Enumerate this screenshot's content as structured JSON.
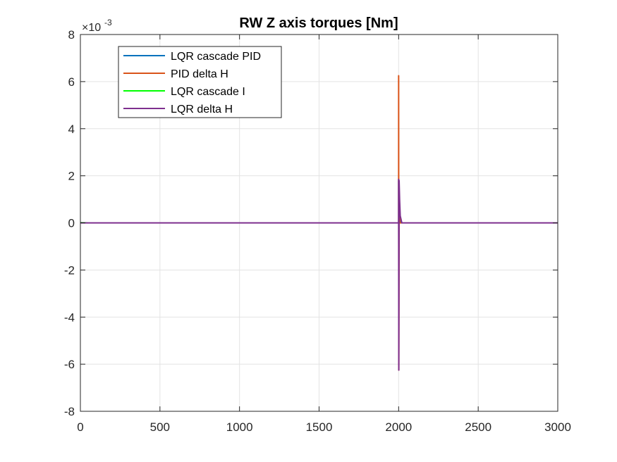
{
  "chart_data": {
    "type": "line",
    "title": "RW Z axis torques [Nm]",
    "xlabel": "",
    "ylabel": "",
    "xlim": [
      0,
      3000
    ],
    "ylim": [
      -8,
      8
    ],
    "y_exponent_base": "×10",
    "y_exponent_power": "-3",
    "grid": true,
    "legend_position": "top-left",
    "x_ticks": [
      0,
      500,
      1000,
      1500,
      2000,
      2500,
      3000
    ],
    "x_tick_labels": [
      "0",
      "500",
      "1000",
      "1500",
      "2000",
      "2500",
      "3000"
    ],
    "y_ticks": [
      -8,
      -6,
      -4,
      -2,
      0,
      2,
      4,
      6,
      8
    ],
    "y_tick_labels": [
      "-8",
      "-6",
      "-4",
      "-2",
      "0",
      "2",
      "4",
      "6",
      "8"
    ],
    "series": [
      {
        "name": "LQR cascade PID",
        "color": "#0072BD",
        "x": [
          0,
          1999,
          2000,
          2000,
          2001,
          2004,
          2010,
          3000
        ],
        "y": [
          0,
          0,
          0,
          1.8,
          -1.8,
          0.8,
          0,
          0
        ]
      },
      {
        "name": "PID delta H",
        "color": "#D95319",
        "x": [
          0,
          1999,
          2000,
          2000,
          2001,
          2003,
          2008,
          3000
        ],
        "y": [
          0,
          0,
          0,
          6.25,
          -6.25,
          0.6,
          0,
          0
        ]
      },
      {
        "name": "LQR cascade I",
        "color": "#00FF00",
        "x": [
          0,
          50,
          100,
          1999,
          2000,
          2001,
          2010,
          3000
        ],
        "y": [
          0.01,
          0,
          0,
          0,
          0,
          0,
          0,
          0
        ]
      },
      {
        "name": "LQR delta H",
        "color": "#7E2F8E",
        "x": [
          0,
          1999,
          2000,
          2000,
          2001,
          2003,
          2006,
          2010,
          2020,
          3000
        ],
        "y": [
          0,
          0,
          0,
          1.85,
          -6.25,
          1.8,
          1.0,
          0.3,
          0,
          0
        ]
      }
    ]
  }
}
